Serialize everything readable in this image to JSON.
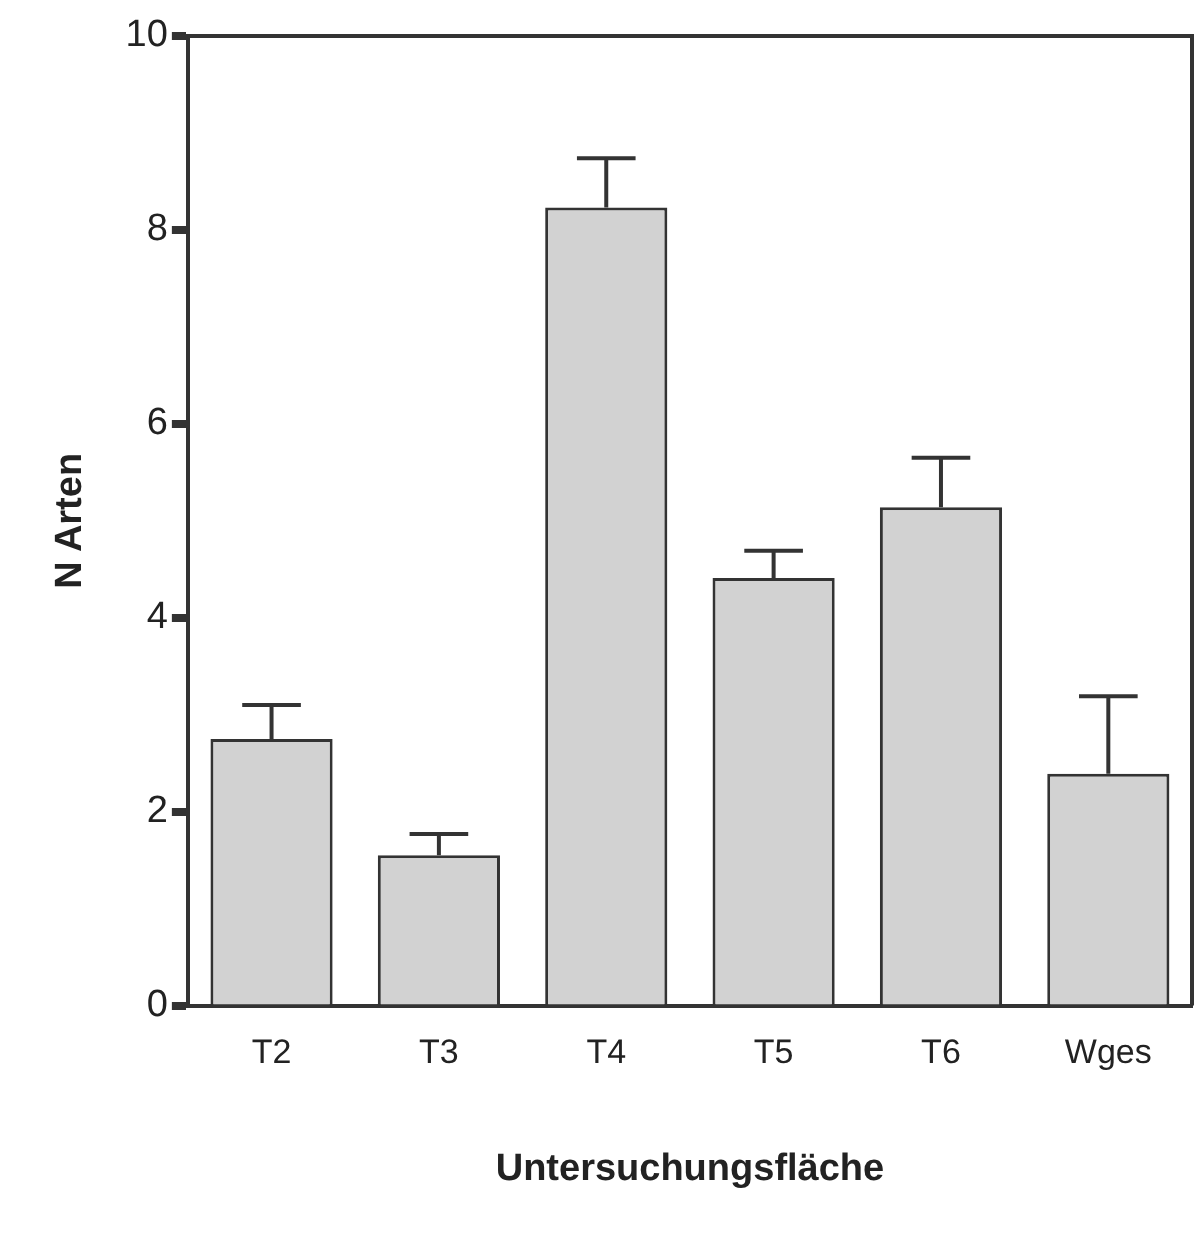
{
  "chart_data": {
    "type": "bar",
    "xlabel": "Untersuchungsfläche",
    "ylabel": "N Arten",
    "categories": [
      "T2",
      "T3",
      "T4",
      "T5",
      "T6",
      "Wges"
    ],
    "values": [
      2.75,
      1.55,
      8.23,
      4.41,
      5.14,
      2.39
    ],
    "errors": [
      [
        2.75,
        3.1
      ],
      [
        1.55,
        1.77
      ],
      [
        8.23,
        8.74
      ],
      [
        4.41,
        4.69
      ],
      [
        5.14,
        5.65
      ],
      [
        2.39,
        3.19
      ]
    ],
    "color": "#d2d2d2",
    "ylim": [
      0,
      10
    ],
    "yticks": [
      0,
      2,
      4,
      6,
      8,
      10
    ],
    "grid": false,
    "legend": false
  }
}
